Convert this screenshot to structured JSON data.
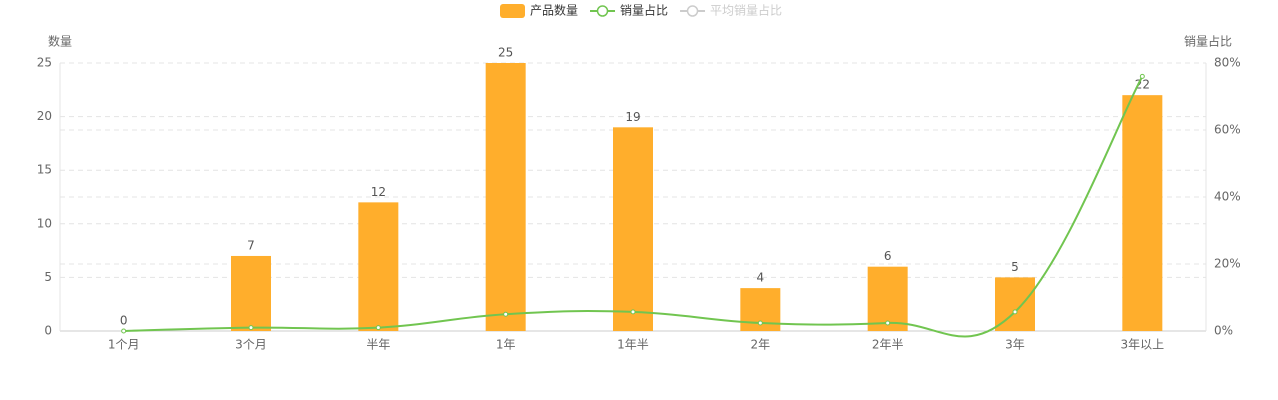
{
  "chart_data": {
    "type": "bar-line",
    "categories": [
      "1个月",
      "3个月",
      "半年",
      "1年",
      "1年半",
      "2年",
      "2年半",
      "3年",
      "3年以上"
    ],
    "series": [
      {
        "name": "产品数量",
        "type": "bar",
        "color": "#ffae2c",
        "values": [
          0,
          7,
          12,
          25,
          19,
          4,
          6,
          5,
          22
        ]
      },
      {
        "name": "销量占比",
        "type": "line",
        "axis": "y2",
        "color": "#71c550",
        "values": [
          0,
          1,
          1,
          5,
          5.7,
          2.4,
          2.4,
          5.7,
          76
        ]
      },
      {
        "name": "平均销量占比",
        "type": "line",
        "axis": "y2",
        "color": "#cccccc",
        "visible": false
      }
    ],
    "y_label": "数量",
    "y2_label": "销量占比",
    "ylim": [
      0,
      25
    ],
    "yticks": [
      0,
      5,
      10,
      15,
      20,
      25
    ],
    "y2lim": [
      0,
      80
    ],
    "y2ticks": [
      {
        "value": 0,
        "label": "0%"
      },
      {
        "value": 20,
        "label": "20%"
      },
      {
        "value": 40,
        "label": "40%"
      },
      {
        "value": 60,
        "label": "60%"
      },
      {
        "value": 80,
        "label": "80%"
      }
    ],
    "grid": true,
    "legend": "top"
  }
}
